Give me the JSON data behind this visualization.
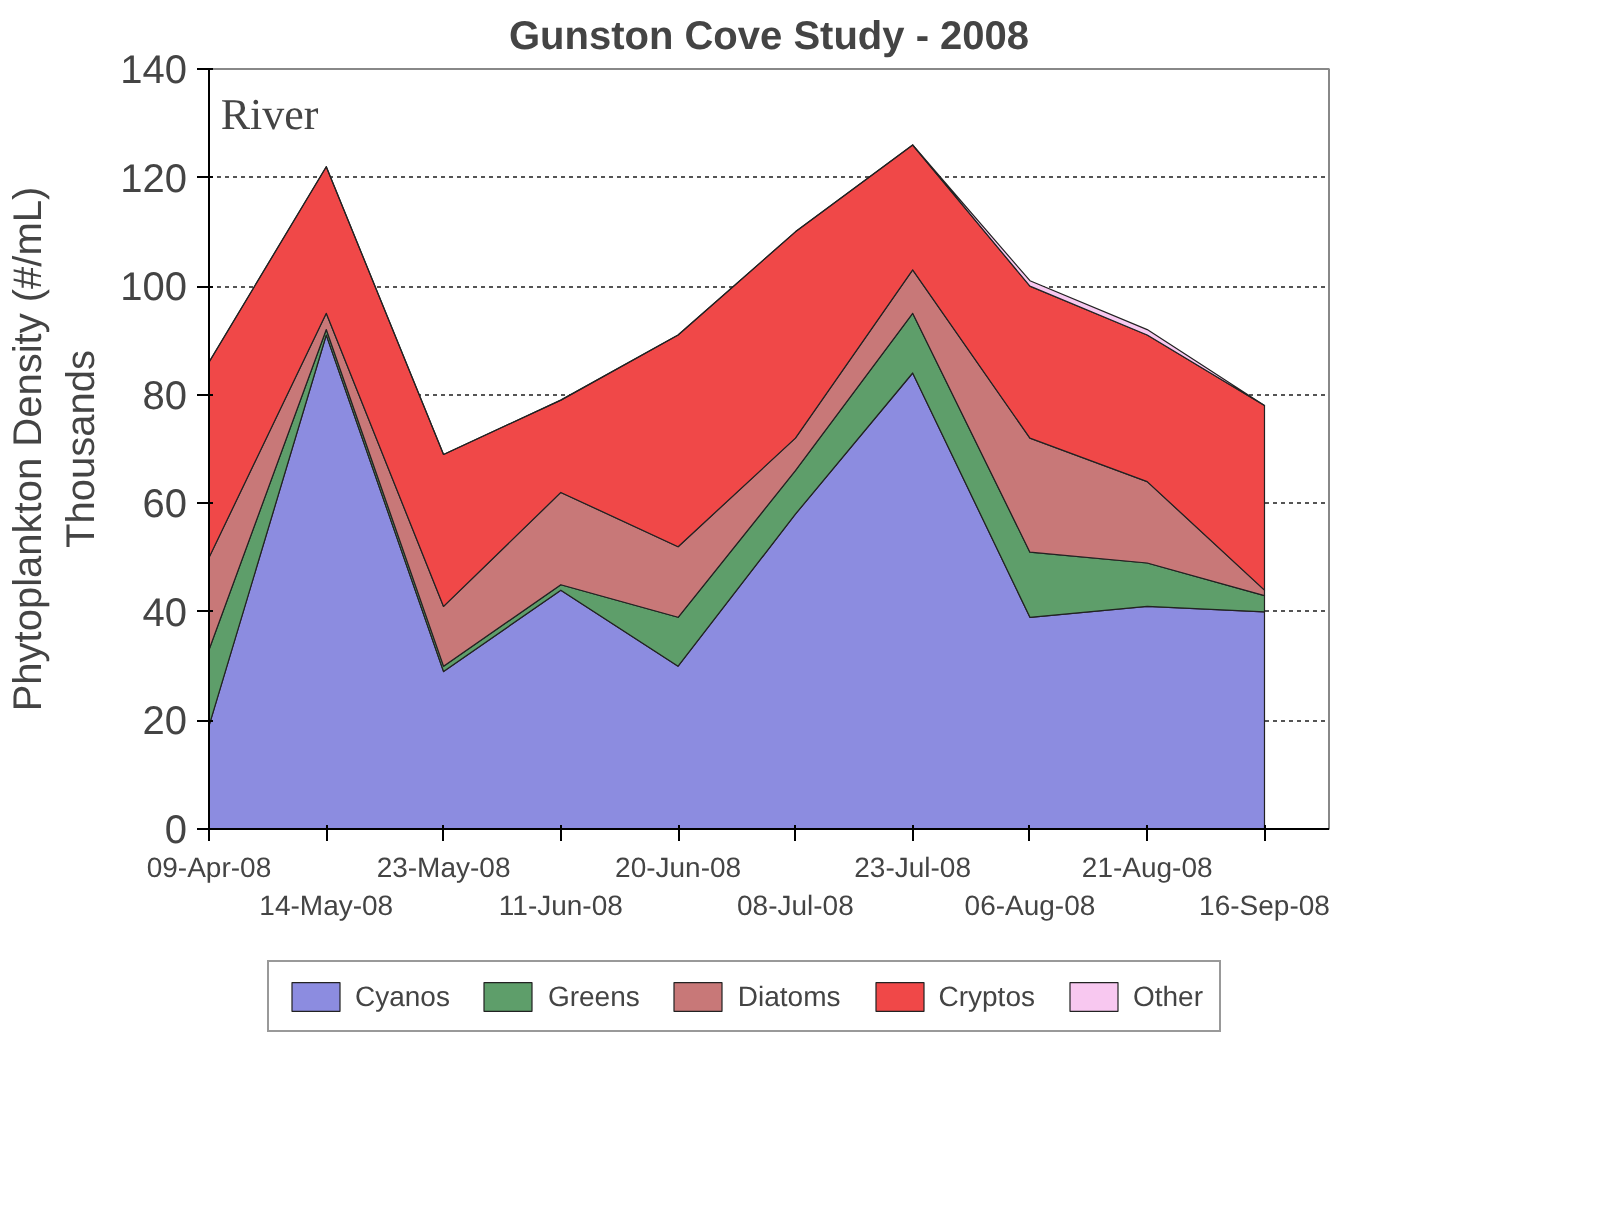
{
  "chart_data": {
    "type": "area",
    "stacked": true,
    "title": "Gunston Cove Study - 2008",
    "ylabel": "Phytoplankton Density (#/mL)\nThousands",
    "categories": [
      "09-Apr-08",
      "14-May-08",
      "23-May-08",
      "11-Jun-08",
      "20-Jun-08",
      "08-Jul-08",
      "23-Jul-08",
      "06-Aug-08",
      "21-Aug-08",
      "16-Sep-08"
    ],
    "series": [
      {
        "name": "Cyanos",
        "color": "#8c8ce0",
        "values": [
          19,
          91,
          29,
          44,
          30,
          58,
          84,
          39,
          41,
          40
        ]
      },
      {
        "name": "Greens",
        "color": "#5e9e6a",
        "values": [
          14,
          1,
          1,
          1,
          9,
          8,
          11,
          12,
          8,
          3
        ]
      },
      {
        "name": "Diatoms",
        "color": "#c87878",
        "values": [
          17,
          3,
          11,
          17,
          13,
          6,
          8,
          21,
          15,
          1
        ]
      },
      {
        "name": "Cryptos",
        "color": "#f04848",
        "values": [
          36,
          27,
          28,
          17,
          39,
          38,
          23,
          28,
          27,
          34
        ]
      },
      {
        "name": "Other",
        "color": "#f8c8f0",
        "values": [
          0,
          0,
          0,
          0,
          0,
          0,
          0,
          1,
          1,
          0
        ]
      }
    ],
    "ylim": [
      0,
      140
    ],
    "yticks": [
      0,
      20,
      40,
      60,
      80,
      100,
      120,
      140
    ],
    "grid": "y",
    "legend": "bottom",
    "annotations": [
      "River"
    ]
  }
}
